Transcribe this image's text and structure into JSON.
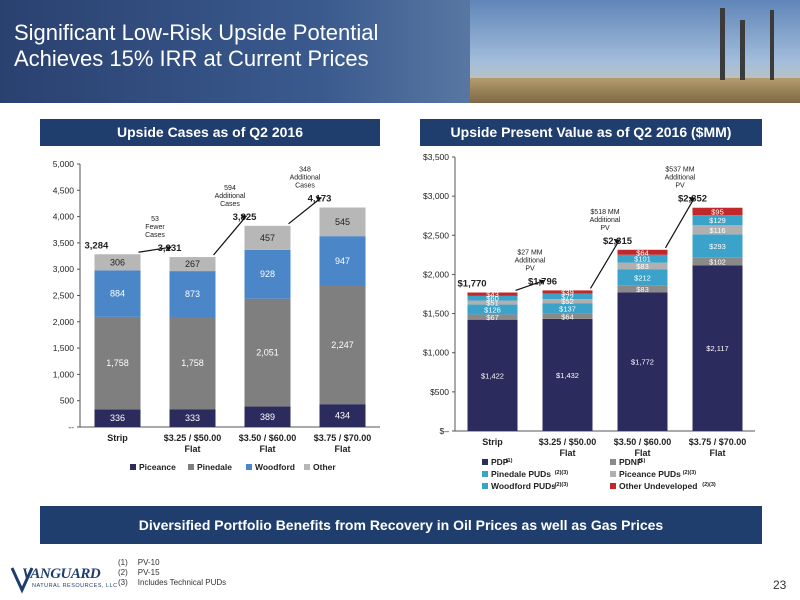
{
  "header": {
    "title_line1": "Significant Low-Risk Upside Potential",
    "title_line2": "Achieves 15% IRR at Current Prices"
  },
  "left_panel": {
    "title": "Upside Cases as of Q2 2016"
  },
  "right_panel": {
    "title": "Upside Present Value as of Q2 2016 ($MM)"
  },
  "footer": {
    "banner": "Diversified Portfolio Benefits from Recovery in Oil Prices as well as Gas Prices",
    "notes": [
      {
        "mark": "(1)",
        "text": "PV-10"
      },
      {
        "mark": "(2)",
        "text": "PV-15"
      },
      {
        "mark": "(3)",
        "text": "Includes Technical PUDs"
      }
    ],
    "logo_text": "VANGUARD",
    "logo_sub": "NATURAL RESOURCES, LLC",
    "page_number": "23"
  },
  "colors": {
    "navy": "#1f3e6e",
    "piceance": "#2b2b5e",
    "pinedale": "#7f7f7f",
    "woodford": "#4a86c8",
    "other": "#b7b7b7",
    "pdnp": "#8a8a8a",
    "piceance_puds": "#b0b0b0",
    "woodford_puds": "#3ba3c9",
    "other_undev": "#c0282b"
  },
  "chart_data": [
    {
      "type": "bar",
      "stacked": true,
      "title": "Upside Cases as of Q2 2016",
      "categories": [
        "Strip",
        "$3.25 / $50.00 Flat",
        "$3.50 / $60.00 Flat",
        "$3.75 / $70.00 Flat"
      ],
      "category_lines": [
        [
          "Strip"
        ],
        [
          "$3.25 / $50.00",
          "Flat"
        ],
        [
          "$3.50 / $60.00",
          "Flat"
        ],
        [
          "$3.75 / $70.00",
          "Flat"
        ]
      ],
      "series": [
        {
          "name": "Piceance",
          "values": [
            336,
            333,
            389,
            434
          ]
        },
        {
          "name": "Pinedale",
          "values": [
            1758,
            1758,
            2051,
            2247
          ]
        },
        {
          "name": "Woodford",
          "values": [
            884,
            873,
            928,
            947
          ]
        },
        {
          "name": "Other",
          "values": [
            306,
            267,
            457,
            545
          ]
        }
      ],
      "totals": [
        3284,
        3231,
        3825,
        4173
      ],
      "total_labels": [
        "3,284",
        "3,231",
        "3,825",
        "4,173"
      ],
      "value_labels": [
        [
          "336",
          "333",
          "389",
          "434"
        ],
        [
          "1,758",
          "1,758",
          "2,051",
          "2,247"
        ],
        [
          "884",
          "873",
          "928",
          "947"
        ],
        [
          "306",
          "267",
          "457",
          "545"
        ]
      ],
      "ylim": [
        0,
        5000
      ],
      "yticks": [
        0,
        500,
        1000,
        1500,
        2000,
        2500,
        3000,
        3500,
        4000,
        4500,
        5000
      ],
      "ytick_labels": [
        "--",
        "500",
        "1,000",
        "1,500",
        "2,000",
        "2,500",
        "3,000",
        "3,500",
        "4,000",
        "4,500",
        "5,000"
      ],
      "annotations": [
        {
          "lines": [
            "53",
            "Fewer",
            "Cases"
          ],
          "from": 0,
          "to": 1
        },
        {
          "lines": [
            "594",
            "Additional",
            "Cases"
          ],
          "from": 1,
          "to": 2
        },
        {
          "lines": [
            "348",
            "Additional",
            "Cases"
          ],
          "from": 2,
          "to": 3
        }
      ],
      "legend_position": "bottom"
    },
    {
      "type": "bar",
      "stacked": true,
      "title": "Upside Present Value as of Q2 2016 ($MM)",
      "categories": [
        "Strip",
        "$3.25 / $50.00 Flat",
        "$3.50 / $60.00 Flat",
        "$3.75 / $70.00 Flat"
      ],
      "category_lines": [
        [
          "Strip"
        ],
        [
          "$3.25 / $50.00",
          "Flat"
        ],
        [
          "$3.50 / $60.00",
          "Flat"
        ],
        [
          "$3.75 / $70.00",
          "Flat"
        ]
      ],
      "series": [
        {
          "name": "PDP",
          "sup": "(1)",
          "values": [
            1422,
            1432,
            1772,
            2117
          ]
        },
        {
          "name": "PDNP",
          "sup": "(1)",
          "values": [
            67,
            64,
            83,
            102
          ]
        },
        {
          "name": "Pinedale PUDs",
          "sup": "(2)(3)",
          "values": [
            126,
            137,
            212,
            293
          ]
        },
        {
          "name": "Piceance PUDs",
          "sup": "(2)(3)",
          "values": [
            51,
            52,
            83,
            116
          ]
        },
        {
          "name": "Woodford PUDs",
          "sup": "(2)(3)",
          "values": [
            60,
            72,
            101,
            129
          ]
        },
        {
          "name": "Other Undeveloped",
          "sup": "(2)(3)",
          "values": [
            43,
            39,
            64,
            95
          ]
        }
      ],
      "value_labels": [
        [
          "$1,422",
          "$1,432",
          "$1,772",
          "$2,117"
        ],
        [
          "$67",
          "$64",
          "$83",
          "$102"
        ],
        [
          "$126",
          "$137",
          "$212",
          "$293"
        ],
        [
          "$51",
          "$52",
          "$83",
          "$116"
        ],
        [
          "$60",
          "$72",
          "$101",
          "$129"
        ],
        [
          "$43",
          "$39",
          "$64",
          "$95"
        ]
      ],
      "totals": [
        1770,
        1796,
        2315,
        2852
      ],
      "total_labels": [
        "$1,770",
        "$1,796",
        "$2,315",
        "$2,852"
      ],
      "ylim": [
        0,
        3500
      ],
      "yticks": [
        0,
        500,
        1000,
        1500,
        2000,
        2500,
        3000,
        3500
      ],
      "ytick_labels": [
        "$–",
        "$500",
        "$1,000",
        "$1,500",
        "$2,000",
        "$2,500",
        "$3,000",
        "$3,500"
      ],
      "annotations": [
        {
          "lines": [
            "$27 MM",
            "Additional",
            "PV"
          ],
          "from": 0,
          "to": 1
        },
        {
          "lines": [
            "$518 MM",
            "Additional",
            "PV"
          ],
          "from": 1,
          "to": 2
        },
        {
          "lines": [
            "$537 MM",
            "Additional",
            "PV"
          ],
          "from": 2,
          "to": 3
        }
      ],
      "legend_position": "bottom"
    }
  ]
}
